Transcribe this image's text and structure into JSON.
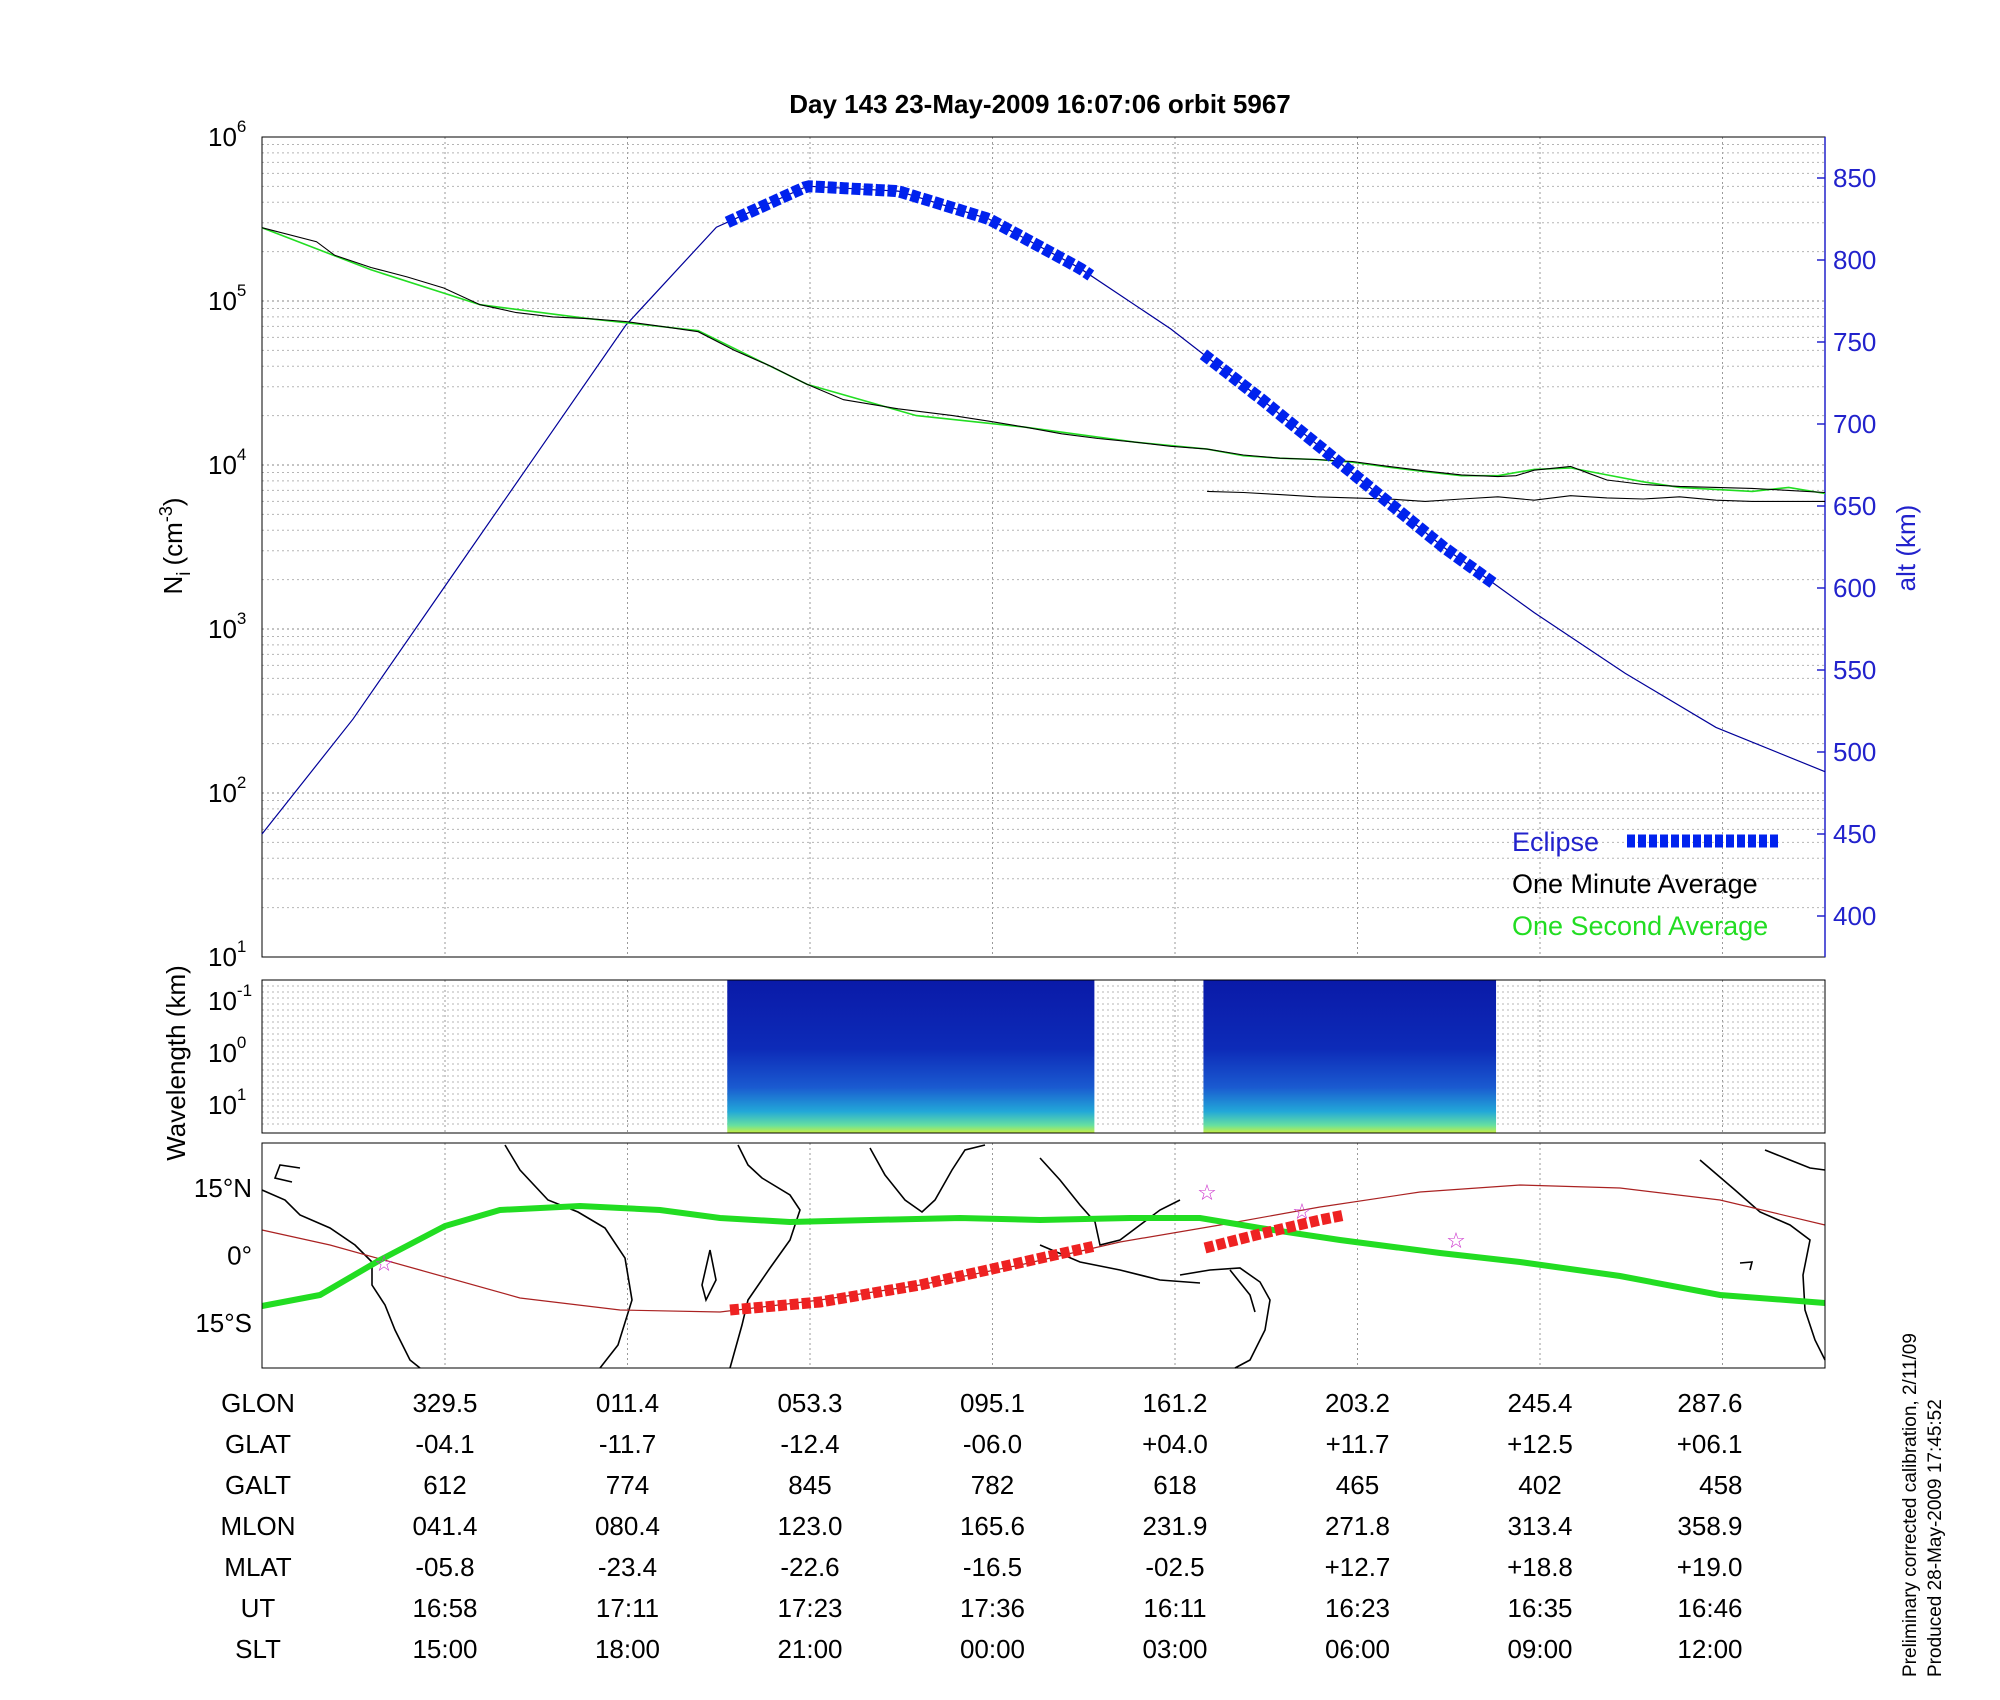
{
  "title": "Day 143  23-May-2009 16:07:06   orbit 5967",
  "colors": {
    "axis_right": "#2222cc",
    "eclipse": "#0022ee",
    "minute_avg": "#000000",
    "second_avg": "#22dd22",
    "altitude_line": "#000099",
    "map_track_green": "#22dd22",
    "map_track_red": "#ee2222",
    "map_equator": "#aa2222",
    "map_star": "#cc33cc"
  },
  "chart_data": [
    {
      "type": "line",
      "panel": "ion density and altitude",
      "ylabel_base": "N",
      "ylabel_sub": "i",
      "ylabel_unit": "(cm",
      "ylabel_unit_sup": "-3",
      "ylabel_unit_end": ")",
      "y_scale": "log",
      "ylim": [
        10,
        1000000
      ],
      "yticks": [
        {
          "base": "10",
          "exp": "1"
        },
        {
          "base": "10",
          "exp": "2"
        },
        {
          "base": "10",
          "exp": "3"
        },
        {
          "base": "10",
          "exp": "4"
        },
        {
          "base": "10",
          "exp": "5"
        },
        {
          "base": "10",
          "exp": "6"
        }
      ],
      "right_axis": {
        "label": "alt (km)",
        "ylim": [
          375,
          875
        ],
        "ticks": [
          "400",
          "450",
          "500",
          "550",
          "600",
          "650",
          "700",
          "750",
          "800",
          "850"
        ]
      },
      "x_domain_minutes": [
        0,
        86
      ],
      "grid": true,
      "legend": {
        "placement": "bottom-right",
        "entries": [
          {
            "label": "Eclipse",
            "color_key": "eclipse",
            "style": "dashed-square"
          },
          {
            "label": "One Minute Average",
            "color_key": "minute_avg"
          },
          {
            "label": "One Second Average",
            "color_key": "second_avg"
          }
        ]
      },
      "series": [
        {
          "name": "One Minute Average",
          "axis": "left",
          "segments": [
            {
              "x": [
                0,
                3,
                4,
                6,
                8,
                10,
                12,
                14,
                16,
                18,
                20,
                22,
                24,
                26,
                28,
                30,
                32,
                35,
                38,
                40,
                42,
                44,
                46,
                48,
                50,
                52,
                54,
                56,
                58,
                60,
                62,
                64,
                66,
                68,
                69,
                70,
                72,
                73,
                74,
                76,
                78,
                80,
                82,
                84,
                86
              ],
              "y": [
                280000,
                230000,
                190000,
                160000,
                140000,
                120000,
                95000,
                85000,
                80000,
                78000,
                75000,
                70000,
                65000,
                50000,
                40000,
                31000,
                25000,
                22000,
                20000,
                18500,
                17000,
                15500,
                14500,
                13800,
                13000,
                12500,
                11500,
                11000,
                10800,
                10500,
                9800,
                9200,
                8700,
                8500,
                8600,
                9300,
                9800,
                8900,
                8100,
                7600,
                7400,
                7300,
                7200,
                7000,
                6800
              ]
            },
            {
              "x": [
                52,
                54,
                56,
                58,
                60,
                62,
                64,
                66,
                68,
                70,
                72,
                74,
                76,
                78,
                80,
                82,
                84,
                86
              ],
              "y": [
                6900,
                6800,
                6600,
                6400,
                6300,
                6200,
                6000,
                6200,
                6400,
                6100,
                6500,
                6300,
                6200,
                6400,
                6100,
                6000,
                6000,
                6000
              ]
            }
          ]
        },
        {
          "name": "One Second Average",
          "axis": "left",
          "segments": [
            {
              "x": [
                0,
                6,
                12,
                18,
                24,
                30,
                36,
                42,
                48,
                52,
                54,
                56,
                58,
                60,
                62,
                64,
                66,
                68,
                70,
                72,
                74,
                76,
                78,
                80,
                82,
                84,
                86
              ],
              "y": [
                280000,
                155000,
                95000,
                78000,
                66000,
                31000,
                20000,
                17000,
                13800,
                12500,
                11400,
                11000,
                10800,
                10400,
                9700,
                9100,
                8600,
                8600,
                9400,
                9600,
                8700,
                7900,
                7300,
                7100,
                6900,
                7300,
                6700
              ]
            }
          ]
        },
        {
          "name": "Altitude",
          "axis": "right",
          "x": [
            0,
            5,
            10,
            15,
            20,
            25,
            30,
            35,
            40,
            45,
            50,
            55,
            60,
            65,
            70,
            75,
            80,
            86
          ],
          "y": [
            450,
            520,
            600,
            680,
            760,
            820,
            845,
            842,
            825,
            795,
            758,
            715,
            670,
            625,
            585,
            548,
            515,
            488
          ]
        }
      ],
      "x_ticks": {
        "GLON": [
          "329.5",
          "011.4",
          "053.3",
          "095.1",
          "161.2",
          "203.2",
          "245.4",
          "287.6"
        ],
        "GLAT": [
          "-04.1",
          "-11.7",
          "-12.4",
          "-06.0",
          "+04.0",
          "+11.7",
          "+12.5",
          "+06.1"
        ],
        "GALT": [
          "612",
          "774",
          "845",
          "782",
          "618",
          "465",
          "402",
          "458"
        ],
        "MLON": [
          "041.4",
          "080.4",
          "123.0",
          "165.6",
          "231.9",
          "271.8",
          "313.4",
          "358.9"
        ],
        "MLAT": [
          "-05.8",
          "-23.4",
          "-22.6",
          "-16.5",
          "-02.5",
          "+12.7",
          "+18.8",
          "+19.0"
        ],
        "UT": [
          "16:58",
          "17:11",
          "17:23",
          "17:36",
          "16:11",
          "16:23",
          "16:35",
          "16:46"
        ],
        "SLT": [
          "15:00",
          "18:00",
          "21:00",
          "00:00",
          "03:00",
          "06:00",
          "09:00",
          "12:00"
        ]
      }
    },
    {
      "type": "heatmap",
      "panel": "wavelength spectrogram",
      "ylabel": "Wavelength (km)",
      "yticks": [
        {
          "base": "10",
          "exp": "-1"
        },
        {
          "base": "10",
          "exp": "0"
        },
        {
          "base": "10",
          "exp": "1"
        }
      ],
      "data_blocks_x_minutes": [
        [
          25.6,
          45.8
        ],
        [
          51.8,
          67.9
        ]
      ]
    },
    {
      "type": "line",
      "panel": "ground track map",
      "yticks": [
        "15°N",
        "0°",
        "15°S"
      ],
      "ylim": [
        -25,
        25
      ]
    }
  ],
  "table": {
    "row_labels": [
      "GLON",
      "GLAT",
      "GALT",
      "MLON",
      "MLAT",
      "UT",
      "SLT"
    ]
  },
  "notes": {
    "line1": "Preliminary corrected calibration, 2/11/09",
    "line2": "Produced 28-May-2009 17:45:52"
  }
}
